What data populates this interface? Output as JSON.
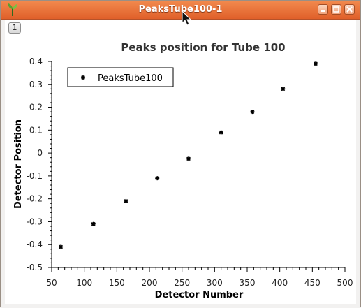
{
  "window": {
    "title": "PeaksTube100-1",
    "tab_number": "1",
    "icons": {
      "app": "python-leaf-icon",
      "minimize": "minimize-icon",
      "maximize": "maximize-icon",
      "close": "close-icon"
    },
    "colors": {
      "titlebar": "#e66a35",
      "background": "#f2f1f0"
    }
  },
  "chart_data": {
    "type": "scatter",
    "title": "Peaks position for Tube 100",
    "xlabel": "Detector Number",
    "ylabel": "Detector Position",
    "xlim": [
      50,
      500
    ],
    "ylim": [
      -0.5,
      0.4
    ],
    "xticks": [
      "50",
      "100",
      "150",
      "200",
      "250",
      "300",
      "350",
      "400",
      "450",
      "500"
    ],
    "yticks": [
      "0.4",
      "0.3",
      "0.2",
      "0.1",
      "0",
      "-0.1",
      "-0.2",
      "-0.3",
      "-0.4",
      "-0.5"
    ],
    "legend_position": "top-left",
    "grid": false,
    "series": [
      {
        "name": "PeaksTube100",
        "color": "#000000",
        "marker": "star",
        "x": [
          64,
          114,
          164,
          212,
          260,
          310,
          358,
          405,
          455
        ],
        "y": [
          -0.41,
          -0.31,
          -0.21,
          -0.11,
          -0.025,
          0.09,
          0.18,
          0.28,
          0.39
        ]
      }
    ]
  }
}
